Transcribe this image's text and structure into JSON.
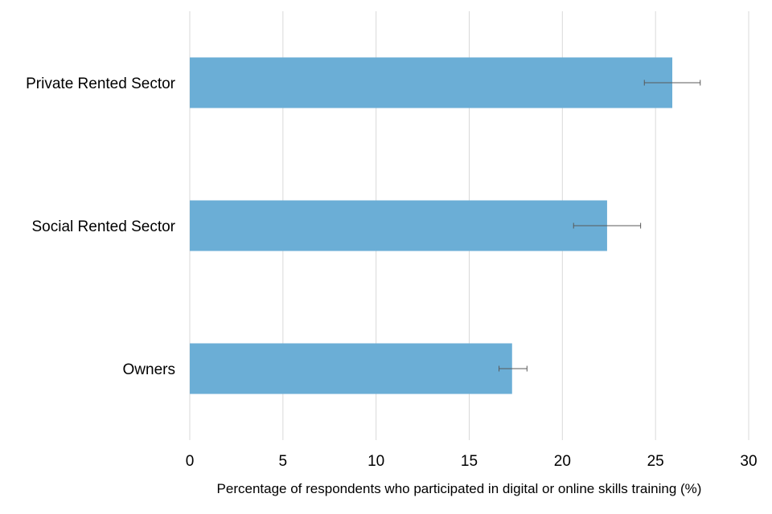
{
  "chart_data": {
    "type": "bar",
    "orientation": "horizontal",
    "title": "",
    "categories": [
      "Private Rented Sector",
      "Social Rented Sector",
      "Owners"
    ],
    "values": [
      25.9,
      22.4,
      17.3
    ],
    "error_bars": [
      {
        "low": 24.4,
        "high": 27.4
      },
      {
        "low": 20.6,
        "high": 24.2
      },
      {
        "low": 16.6,
        "high": 18.1
      }
    ],
    "xlabel": "Percentage of respondents who participated in digital or online skills training (%)",
    "ylabel": "",
    "xlim": [
      0,
      30
    ],
    "xticks": [
      "0",
      "5",
      "10",
      "15",
      "20",
      "25",
      "30"
    ],
    "grid": true,
    "bar_color": "#6BAED6",
    "grid_color": "#D9D9D9",
    "error_color": "#595959"
  }
}
